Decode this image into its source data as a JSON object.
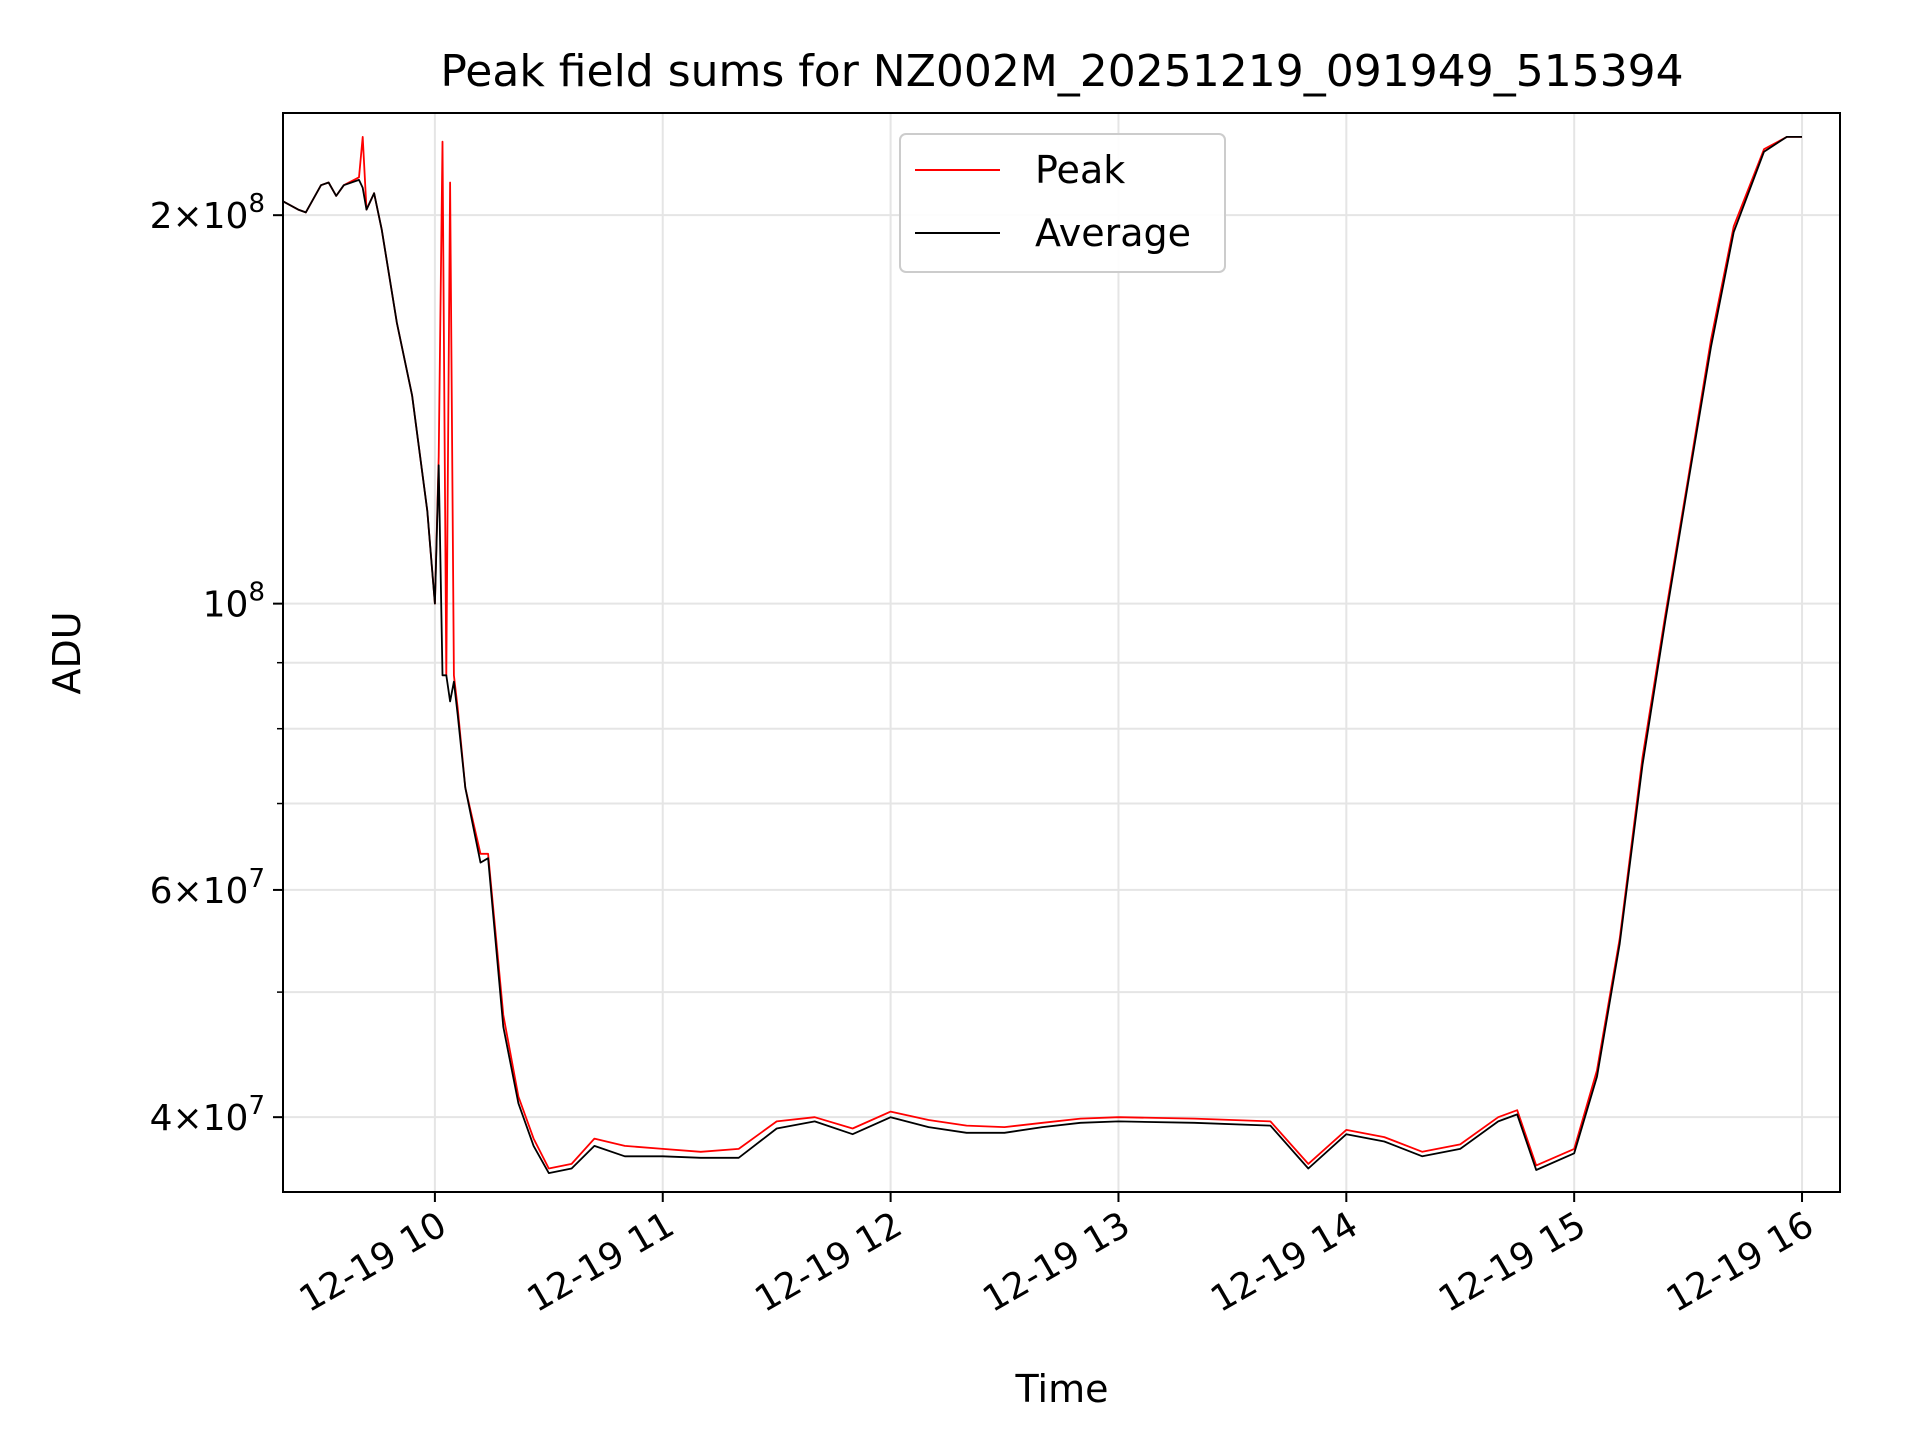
{
  "chart_data": {
    "type": "line",
    "title": "Peak field sums for NZ002M_20251219_091949_515394",
    "xlabel": "Time",
    "ylabel": "ADU",
    "yscale": "log",
    "xlim": [
      "2025-12-19 09:20",
      "2025-12-19 16:10"
    ],
    "ylim": [
      35000000,
      240000000
    ],
    "grid": true,
    "legend": {
      "position": "top-center",
      "entries": [
        "Peak",
        "Average"
      ]
    },
    "colors": {
      "Peak": "#ff0000",
      "Average": "#000000",
      "grid": "#e5e5e5"
    },
    "x_ticks": [
      {
        "value": "2025-12-19 10:00",
        "label": "12-19 10"
      },
      {
        "value": "2025-12-19 11:00",
        "label": "12-19 11"
      },
      {
        "value": "2025-12-19 12:00",
        "label": "12-19 12"
      },
      {
        "value": "2025-12-19 13:00",
        "label": "12-19 13"
      },
      {
        "value": "2025-12-19 14:00",
        "label": "12-19 14"
      },
      {
        "value": "2025-12-19 15:00",
        "label": "12-19 15"
      },
      {
        "value": "2025-12-19 16:00",
        "label": "12-19 16"
      }
    ],
    "y_ticks_major": [
      {
        "value": 40000000,
        "base": "4",
        "exp": "7",
        "mantissa": true
      },
      {
        "value": 60000000,
        "base": "6",
        "exp": "7",
        "mantissa": true
      },
      {
        "value": 100000000,
        "base": "10",
        "exp": "8",
        "mantissa": false
      },
      {
        "value": 200000000,
        "base": "2",
        "exp": "8",
        "mantissa": true
      }
    ],
    "y_ticks_minor": [
      50000000,
      70000000,
      80000000,
      90000000
    ],
    "series": [
      {
        "name": "Peak",
        "x": [
          "2025-12-19 09:20",
          "2025-12-19 09:24",
          "2025-12-19 09:26",
          "2025-12-19 09:30",
          "2025-12-19 09:32",
          "2025-12-19 09:34",
          "2025-12-19 09:36",
          "2025-12-19 09:40",
          "2025-12-19 09:41",
          "2025-12-19 09:42",
          "2025-12-19 09:44",
          "2025-12-19 09:46",
          "2025-12-19 09:50",
          "2025-12-19 09:54",
          "2025-12-19 09:58",
          "2025-12-19 10:00",
          "2025-12-19 10:01",
          "2025-12-19 10:02",
          "2025-12-19 10:03",
          "2025-12-19 10:04",
          "2025-12-19 10:05",
          "2025-12-19 10:06",
          "2025-12-19 10:08",
          "2025-12-19 10:12",
          "2025-12-19 10:14",
          "2025-12-19 10:18",
          "2025-12-19 10:22",
          "2025-12-19 10:26",
          "2025-12-19 10:30",
          "2025-12-19 10:36",
          "2025-12-19 10:42",
          "2025-12-19 10:50",
          "2025-12-19 11:00",
          "2025-12-19 11:10",
          "2025-12-19 11:20",
          "2025-12-19 11:30",
          "2025-12-19 11:40",
          "2025-12-19 11:50",
          "2025-12-19 12:00",
          "2025-12-19 12:10",
          "2025-12-19 12:20",
          "2025-12-19 12:30",
          "2025-12-19 12:40",
          "2025-12-19 12:50",
          "2025-12-19 13:00",
          "2025-12-19 13:20",
          "2025-12-19 13:40",
          "2025-12-19 13:50",
          "2025-12-19 14:00",
          "2025-12-19 14:10",
          "2025-12-19 14:20",
          "2025-12-19 14:30",
          "2025-12-19 14:40",
          "2025-12-19 14:45",
          "2025-12-19 14:50",
          "2025-12-19 15:00",
          "2025-12-19 15:06",
          "2025-12-19 15:12",
          "2025-12-19 15:18",
          "2025-12-19 15:24",
          "2025-12-19 15:30",
          "2025-12-19 15:36",
          "2025-12-19 15:42",
          "2025-12-19 15:50",
          "2025-12-19 15:56",
          "2025-12-19 16:00"
        ],
        "values": [
          205000000,
          202000000,
          201000000,
          211000000,
          212000000,
          207000000,
          211000000,
          214000000,
          230000000,
          202000000,
          208000000,
          195000000,
          165000000,
          145000000,
          118000000,
          100000000,
          130000000,
          228000000,
          88000000,
          212000000,
          88000000,
          83000000,
          72000000,
          64000000,
          64000000,
          48000000,
          41500000,
          38500000,
          36500000,
          36800000,
          38500000,
          38000000,
          37800000,
          37600000,
          37800000,
          39700000,
          40000000,
          39200000,
          40400000,
          39800000,
          39400000,
          39300000,
          39600000,
          39900000,
          40000000,
          39900000,
          39700000,
          36800000,
          39100000,
          38600000,
          37600000,
          38100000,
          40000000,
          40500000,
          36700000,
          37800000,
          43500000,
          55000000,
          76000000,
          98000000,
          125000000,
          160000000,
          196000000,
          225000000,
          230000000,
          230000000
        ]
      },
      {
        "name": "Average",
        "x": [
          "2025-12-19 09:20",
          "2025-12-19 09:24",
          "2025-12-19 09:26",
          "2025-12-19 09:30",
          "2025-12-19 09:32",
          "2025-12-19 09:34",
          "2025-12-19 09:36",
          "2025-12-19 09:40",
          "2025-12-19 09:41",
          "2025-12-19 09:42",
          "2025-12-19 09:44",
          "2025-12-19 09:46",
          "2025-12-19 09:50",
          "2025-12-19 09:54",
          "2025-12-19 09:58",
          "2025-12-19 10:00",
          "2025-12-19 10:01",
          "2025-12-19 10:02",
          "2025-12-19 10:03",
          "2025-12-19 10:04",
          "2025-12-19 10:05",
          "2025-12-19 10:06",
          "2025-12-19 10:08",
          "2025-12-19 10:12",
          "2025-12-19 10:14",
          "2025-12-19 10:18",
          "2025-12-19 10:22",
          "2025-12-19 10:26",
          "2025-12-19 10:30",
          "2025-12-19 10:36",
          "2025-12-19 10:42",
          "2025-12-19 10:50",
          "2025-12-19 11:00",
          "2025-12-19 11:10",
          "2025-12-19 11:20",
          "2025-12-19 11:30",
          "2025-12-19 11:40",
          "2025-12-19 11:50",
          "2025-12-19 12:00",
          "2025-12-19 12:10",
          "2025-12-19 12:20",
          "2025-12-19 12:30",
          "2025-12-19 12:40",
          "2025-12-19 12:50",
          "2025-12-19 13:00",
          "2025-12-19 13:20",
          "2025-12-19 13:40",
          "2025-12-19 13:50",
          "2025-12-19 14:00",
          "2025-12-19 14:10",
          "2025-12-19 14:20",
          "2025-12-19 14:30",
          "2025-12-19 14:40",
          "2025-12-19 14:45",
          "2025-12-19 14:50",
          "2025-12-19 15:00",
          "2025-12-19 15:06",
          "2025-12-19 15:12",
          "2025-12-19 15:18",
          "2025-12-19 15:24",
          "2025-12-19 15:30",
          "2025-12-19 15:36",
          "2025-12-19 15:42",
          "2025-12-19 15:50",
          "2025-12-19 15:56",
          "2025-12-19 16:00"
        ],
        "values": [
          205000000,
          202000000,
          201000000,
          211000000,
          212000000,
          207000000,
          211000000,
          213000000,
          210000000,
          202000000,
          208000000,
          195000000,
          165000000,
          145000000,
          118000000,
          100000000,
          128000000,
          88000000,
          88000000,
          84000000,
          87000000,
          82000000,
          72000000,
          63000000,
          63500000,
          47000000,
          41000000,
          38000000,
          36200000,
          36500000,
          38000000,
          37300000,
          37300000,
          37200000,
          37200000,
          39200000,
          39700000,
          38800000,
          40000000,
          39300000,
          38900000,
          38900000,
          39300000,
          39600000,
          39700000,
          39600000,
          39400000,
          36500000,
          38800000,
          38300000,
          37300000,
          37800000,
          39700000,
          40200000,
          36400000,
          37500000,
          43000000,
          54500000,
          75000000,
          97000000,
          124000000,
          158000000,
          194000000,
          224000000,
          230000000,
          230000000
        ]
      }
    ]
  }
}
